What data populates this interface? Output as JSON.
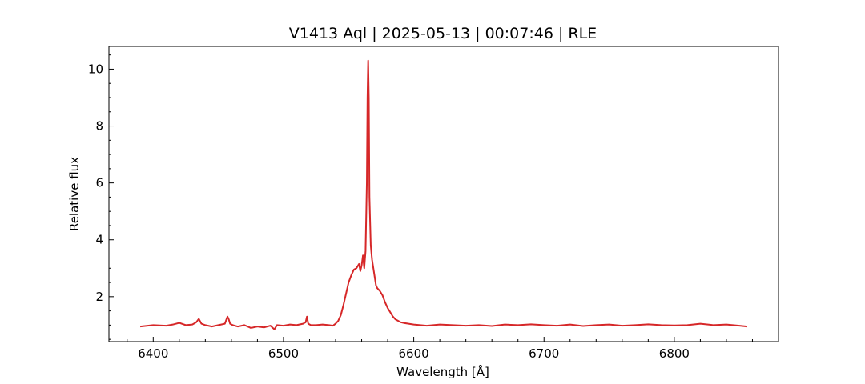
{
  "chart_data": {
    "type": "line",
    "title": "V1413 Aql | 2025-05-13 | 00:07:46 | RLE",
    "xlabel": "Wavelength [Å]",
    "ylabel": "Relative flux",
    "xlim": [
      6366,
      6880
    ],
    "ylim": [
      0.42,
      10.8
    ],
    "x_ticks": [
      6400,
      6500,
      6600,
      6700,
      6800
    ],
    "x_tick_labels": [
      "6400",
      "6500",
      "6600",
      "6700",
      "6800"
    ],
    "y_ticks": [
      2,
      4,
      6,
      8,
      10
    ],
    "y_tick_labels": [
      "2",
      "4",
      "6",
      "8",
      "10"
    ],
    "x_minor_step": 20,
    "y_minor_step": 0.5,
    "grid": false,
    "line_color": "#d62728",
    "series": [
      {
        "x": [
          6390,
          6400,
          6410,
          6415,
          6420,
          6425,
          6430,
          6433,
          6435,
          6437,
          6440,
          6445,
          6450,
          6455,
          6457,
          6458,
          6459,
          6461,
          6465,
          6470,
          6475,
          6480,
          6485,
          6490,
          6493,
          6495,
          6500,
          6505,
          6510,
          6515,
          6517,
          6518,
          6519,
          6521,
          6525,
          6530,
          6535,
          6538,
          6540,
          6542,
          6544,
          6546,
          6548,
          6550,
          6552,
          6554,
          6556,
          6558,
          6559,
          6560,
          6561,
          6562,
          6563,
          6564,
          6564.5,
          6565,
          6565.5,
          6566,
          6567,
          6568,
          6569,
          6570,
          6571,
          6572,
          6574,
          6576,
          6578,
          6580,
          6582,
          6584,
          6586,
          6588,
          6590,
          6593,
          6596,
          6600,
          6605,
          6610,
          6615,
          6620,
          6630,
          6640,
          6650,
          6660,
          6670,
          6680,
          6690,
          6700,
          6710,
          6720,
          6730,
          6740,
          6750,
          6760,
          6770,
          6780,
          6790,
          6800,
          6810,
          6820,
          6830,
          6840,
          6850,
          6856
        ],
        "y": [
          0.95,
          1.0,
          0.98,
          1.02,
          1.08,
          1.0,
          1.02,
          1.1,
          1.22,
          1.05,
          1.0,
          0.95,
          1.0,
          1.05,
          1.3,
          1.2,
          1.05,
          1.0,
          0.95,
          1.0,
          0.9,
          0.95,
          0.92,
          0.98,
          0.85,
          1.0,
          0.98,
          1.02,
          1.0,
          1.05,
          1.1,
          1.3,
          1.05,
          1.0,
          1.0,
          1.02,
          1.0,
          0.98,
          1.05,
          1.15,
          1.35,
          1.7,
          2.1,
          2.5,
          2.75,
          2.95,
          3.0,
          3.15,
          2.9,
          3.1,
          3.45,
          3.0,
          3.6,
          6.0,
          9.0,
          10.3,
          9.0,
          5.5,
          3.8,
          3.3,
          3.0,
          2.7,
          2.4,
          2.3,
          2.2,
          2.05,
          1.8,
          1.6,
          1.45,
          1.3,
          1.2,
          1.15,
          1.1,
          1.07,
          1.05,
          1.02,
          1.0,
          0.98,
          1.0,
          1.02,
          1.0,
          0.98,
          1.0,
          0.97,
          1.02,
          1.0,
          1.03,
          1.0,
          0.98,
          1.02,
          0.97,
          1.0,
          1.02,
          0.98,
          1.0,
          1.03,
          1.0,
          0.99,
          1.0,
          1.05,
          1.0,
          1.02,
          0.98,
          0.95
        ]
      }
    ]
  }
}
